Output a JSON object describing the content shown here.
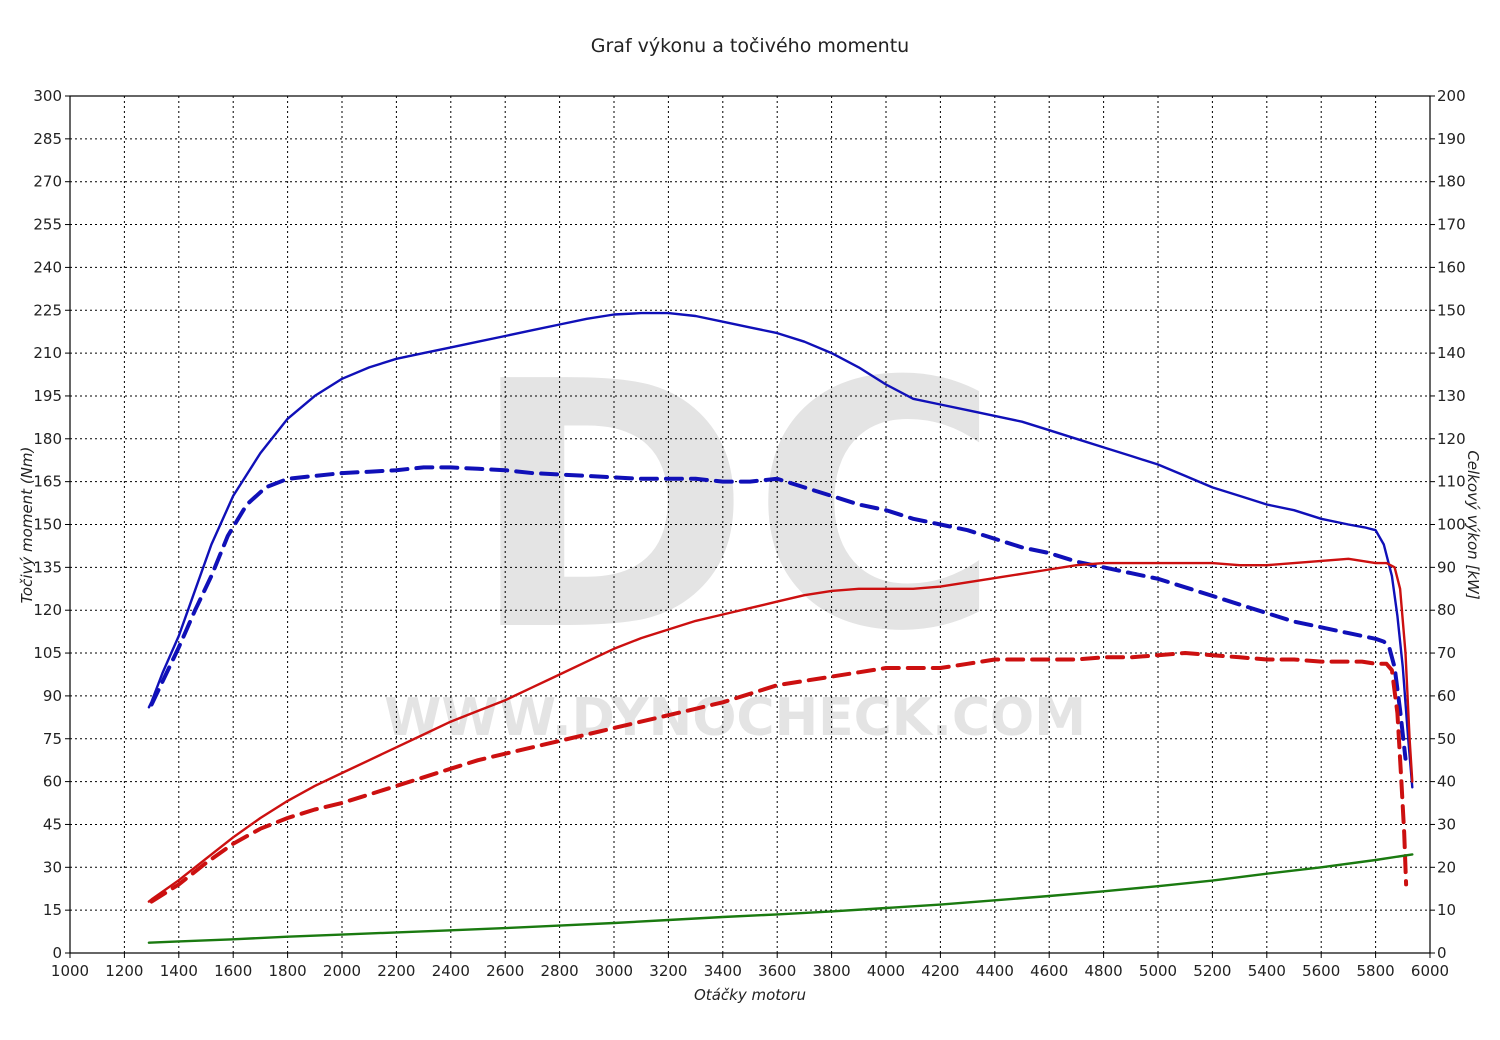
{
  "chart_data": {
    "type": "line",
    "title": "Graf výkonu a točivého momentu",
    "xlabel": "Otáčky motoru",
    "ylabel_left": "Točivý moment (Nm)",
    "ylabel_right": "Celkový výkon [kW]",
    "watermark": {
      "logo": "DC",
      "text": "WWW.DYNOCHECK.COM"
    },
    "xlim": [
      1000,
      6000
    ],
    "ylim_left": [
      0,
      300
    ],
    "ylim_right": [
      0,
      200
    ],
    "x_ticks": [
      1000,
      1200,
      1400,
      1600,
      1800,
      2000,
      2200,
      2400,
      2600,
      2800,
      3000,
      3200,
      3400,
      3600,
      3800,
      4000,
      4200,
      4400,
      4600,
      4800,
      5000,
      5200,
      5400,
      5600,
      5800,
      6000
    ],
    "y_ticks_left": [
      0,
      15,
      30,
      45,
      60,
      75,
      90,
      105,
      120,
      135,
      150,
      165,
      180,
      195,
      210,
      225,
      240,
      255,
      270,
      285,
      300
    ],
    "y_ticks_right": [
      0,
      10,
      20,
      30,
      40,
      50,
      60,
      70,
      80,
      90,
      100,
      110,
      120,
      130,
      140,
      150,
      160,
      170,
      180,
      190,
      200
    ],
    "grid": true,
    "colors": {
      "torque": "#1010b8",
      "power": "#cc1010",
      "loss": "#1a7a10",
      "grid": "#000000"
    },
    "series": [
      {
        "axis": "left",
        "color": "#1010b8",
        "style": "solid",
        "x": [
          1290,
          1300,
          1340,
          1400,
          1460,
          1520,
          1600,
          1700,
          1800,
          1900,
          2000,
          2100,
          2200,
          2300,
          2400,
          2500,
          2600,
          2700,
          2800,
          2900,
          3000,
          3100,
          3200,
          3300,
          3400,
          3500,
          3600,
          3700,
          3800,
          3900,
          4000,
          4100,
          4200,
          4300,
          4400,
          4500,
          4600,
          4700,
          4800,
          4900,
          5000,
          5100,
          5200,
          5300,
          5400,
          5500,
          5600,
          5700,
          5760,
          5800,
          5830,
          5860,
          5880,
          5900,
          5920,
          5935
        ],
        "y": [
          86,
          88,
          98,
          111,
          127,
          143,
          160,
          175,
          187,
          195,
          201,
          205,
          208,
          210,
          212,
          214,
          216,
          218,
          220,
          222,
          223.5,
          224,
          224,
          223,
          221,
          219,
          217,
          214,
          210,
          205,
          199,
          194,
          192,
          190,
          188,
          186,
          183,
          180,
          177,
          174,
          171,
          167,
          163,
          160,
          157,
          155,
          152,
          150,
          149,
          148,
          143,
          132,
          118,
          100,
          75,
          58
        ]
      },
      {
        "axis": "left",
        "color": "#1010b8",
        "style": "dashed",
        "x": [
          1300,
          1350,
          1400,
          1460,
          1520,
          1580,
          1650,
          1720,
          1800,
          1900,
          2000,
          2100,
          2200,
          2300,
          2400,
          2500,
          2600,
          2700,
          2800,
          2900,
          3000,
          3100,
          3200,
          3300,
          3400,
          3500,
          3600,
          3700,
          3800,
          3900,
          4000,
          4100,
          4200,
          4300,
          4400,
          4500,
          4600,
          4700,
          4800,
          4900,
          5000,
          5100,
          5200,
          5300,
          5400,
          5500,
          5600,
          5700,
          5750,
          5800,
          5830,
          5850,
          5870,
          5890,
          5910
        ],
        "y": [
          87,
          97,
          107,
          120,
          132,
          146,
          157,
          163,
          166,
          167,
          168,
          168.5,
          169,
          170,
          170,
          169.5,
          169,
          168,
          167.5,
          167,
          166.5,
          166,
          166,
          166,
          165,
          165,
          166,
          163,
          160,
          157,
          155,
          152,
          150,
          148,
          145,
          142,
          140,
          137,
          135,
          133,
          131,
          128,
          125,
          122,
          119,
          116,
          114,
          112,
          111,
          110,
          109,
          107,
          100,
          85,
          68
        ]
      },
      {
        "axis": "right",
        "color": "#cc1010",
        "style": "solid",
        "x": [
          1290,
          1300,
          1400,
          1500,
          1600,
          1700,
          1800,
          1900,
          2000,
          2100,
          2200,
          2300,
          2400,
          2500,
          2600,
          2700,
          2800,
          2900,
          3000,
          3100,
          3200,
          3300,
          3400,
          3500,
          3600,
          3700,
          3800,
          3900,
          4000,
          4100,
          4200,
          4300,
          4400,
          4500,
          4600,
          4700,
          4800,
          4900,
          5000,
          5100,
          5200,
          5300,
          5400,
          5500,
          5600,
          5700,
          5750,
          5800,
          5840,
          5870,
          5890,
          5910,
          5925,
          5935
        ],
        "y": [
          12,
          12.5,
          17,
          22,
          27,
          31.5,
          35.5,
          39,
          42,
          45,
          48,
          51,
          54,
          56.5,
          59,
          62,
          65,
          68,
          71,
          73.5,
          75.5,
          77.5,
          79,
          80.5,
          82,
          83.5,
          84.5,
          85,
          85,
          85,
          85.5,
          86.5,
          87.5,
          88.5,
          89.5,
          90.5,
          91,
          91,
          91,
          91,
          91,
          90.5,
          90.5,
          91,
          91.5,
          92,
          91.5,
          91,
          91,
          90,
          85,
          70,
          50,
          40
        ]
      },
      {
        "axis": "right",
        "color": "#cc1010",
        "style": "dashed",
        "x": [
          1300,
          1350,
          1400,
          1500,
          1600,
          1700,
          1800,
          1900,
          2000,
          2100,
          2200,
          2300,
          2400,
          2500,
          2600,
          2700,
          2800,
          2900,
          3000,
          3100,
          3200,
          3300,
          3400,
          3500,
          3600,
          3700,
          3800,
          3900,
          4000,
          4100,
          4200,
          4300,
          4400,
          4500,
          4600,
          4700,
          4800,
          4900,
          5000,
          5100,
          5200,
          5300,
          5400,
          5500,
          5600,
          5700,
          5750,
          5800,
          5840,
          5860,
          5880,
          5895,
          5905,
          5912
        ],
        "y": [
          12,
          14,
          16,
          21,
          25.5,
          29,
          31.5,
          33.5,
          35,
          37,
          39,
          41,
          43,
          45,
          46.5,
          48,
          49.5,
          51,
          52.5,
          54,
          55.5,
          57,
          58.5,
          60.5,
          62.5,
          63.5,
          64.5,
          65.5,
          66.5,
          66.5,
          66.5,
          67.5,
          68.5,
          68.5,
          68.5,
          68.5,
          69,
          69,
          69.5,
          70,
          69.5,
          69,
          68.5,
          68.5,
          68,
          68,
          68,
          67.5,
          67.5,
          66,
          56,
          40,
          28,
          16
        ]
      },
      {
        "axis": "right",
        "color": "#1a7a10",
        "style": "solid",
        "x": [
          1290,
          1400,
          1600,
          1800,
          2000,
          2200,
          2400,
          2600,
          2800,
          3000,
          3200,
          3400,
          3600,
          3800,
          4000,
          4200,
          4400,
          4600,
          4800,
          5000,
          5200,
          5400,
          5600,
          5800,
          5935
        ],
        "y": [
          2.4,
          2.7,
          3.2,
          3.8,
          4.3,
          4.8,
          5.3,
          5.8,
          6.4,
          7.0,
          7.7,
          8.4,
          9.0,
          9.7,
          10.5,
          11.3,
          12.3,
          13.3,
          14.4,
          15.6,
          16.9,
          18.5,
          20.0,
          21.7,
          23.0
        ]
      }
    ]
  }
}
